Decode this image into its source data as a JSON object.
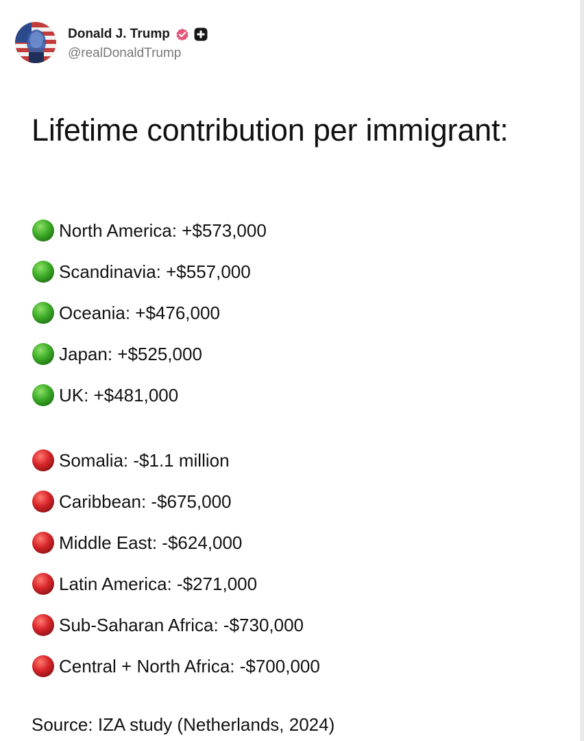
{
  "post": {
    "author_name": "Donald J. Trump",
    "author_handle": "@realDonaldTrump",
    "title": "Lifetime contribution per immigrant:",
    "source": "Source: IZA study (Netherlands, 2024)"
  },
  "colors": {
    "positive_dot": "#3fae29",
    "negative_dot": "#d9262b",
    "verified_badge": "#e3587a",
    "text": "#111111",
    "handle": "#777777"
  },
  "icons": {
    "positive": "green-circle-icon",
    "negative": "red-circle-icon",
    "verified": "verified-badge-icon",
    "plus": "plus-badge-icon"
  },
  "positive_items": [
    {
      "label": "North America: +$573,000"
    },
    {
      "label": "Scandinavia: +$557,000"
    },
    {
      "label": "Oceania: +$476,000"
    },
    {
      "label": "Japan: +$525,000"
    },
    {
      "label": "UK: +$481,000"
    }
  ],
  "negative_items": [
    {
      "label": "Somalia: -$1.1 million"
    },
    {
      "label": "Caribbean: -$675,000"
    },
    {
      "label": "Middle East: -$624,000"
    },
    {
      "label": "Latin America: -$271,000"
    },
    {
      "label": "Sub-Saharan Africa: -$730,000"
    },
    {
      "label": "Central + North Africa: -$700,000"
    }
  ]
}
